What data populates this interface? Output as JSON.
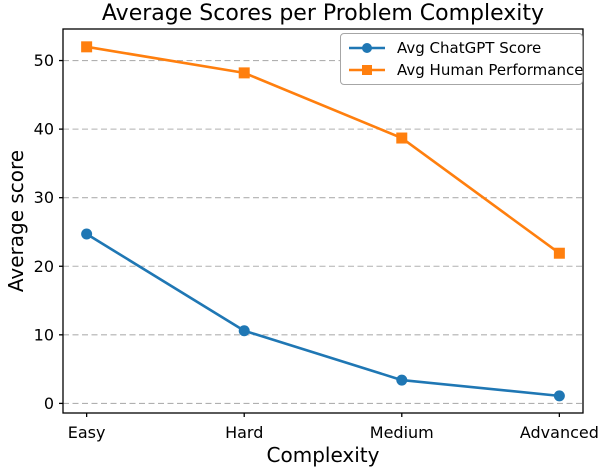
{
  "chart_data": {
    "type": "line",
    "title": "Average Scores per Problem Complexity",
    "xlabel": "Complexity",
    "ylabel": "Average score",
    "categories": [
      "Easy",
      "Hard",
      "Medium",
      "Advanced"
    ],
    "series": [
      {
        "name": "Avg ChatGPT Score",
        "color": "#1f77b4",
        "marker": "circle",
        "values": [
          24.7,
          10.6,
          3.4,
          1.1
        ]
      },
      {
        "name": "Avg Human Performance",
        "color": "#ff7f0e",
        "marker": "square",
        "values": [
          52.0,
          48.2,
          38.7,
          21.9
        ]
      }
    ],
    "yticks": [
      0,
      10,
      20,
      30,
      40,
      50
    ],
    "ylim": [
      -1.4,
      54.6
    ],
    "grid": "horizontal-dashed",
    "legend_position": "upper right"
  },
  "colors": {
    "grid": "#b0b0b0",
    "axis": "#000000",
    "text": "#000000",
    "legend_border": "#a6a6a6",
    "background": "#ffffff"
  }
}
